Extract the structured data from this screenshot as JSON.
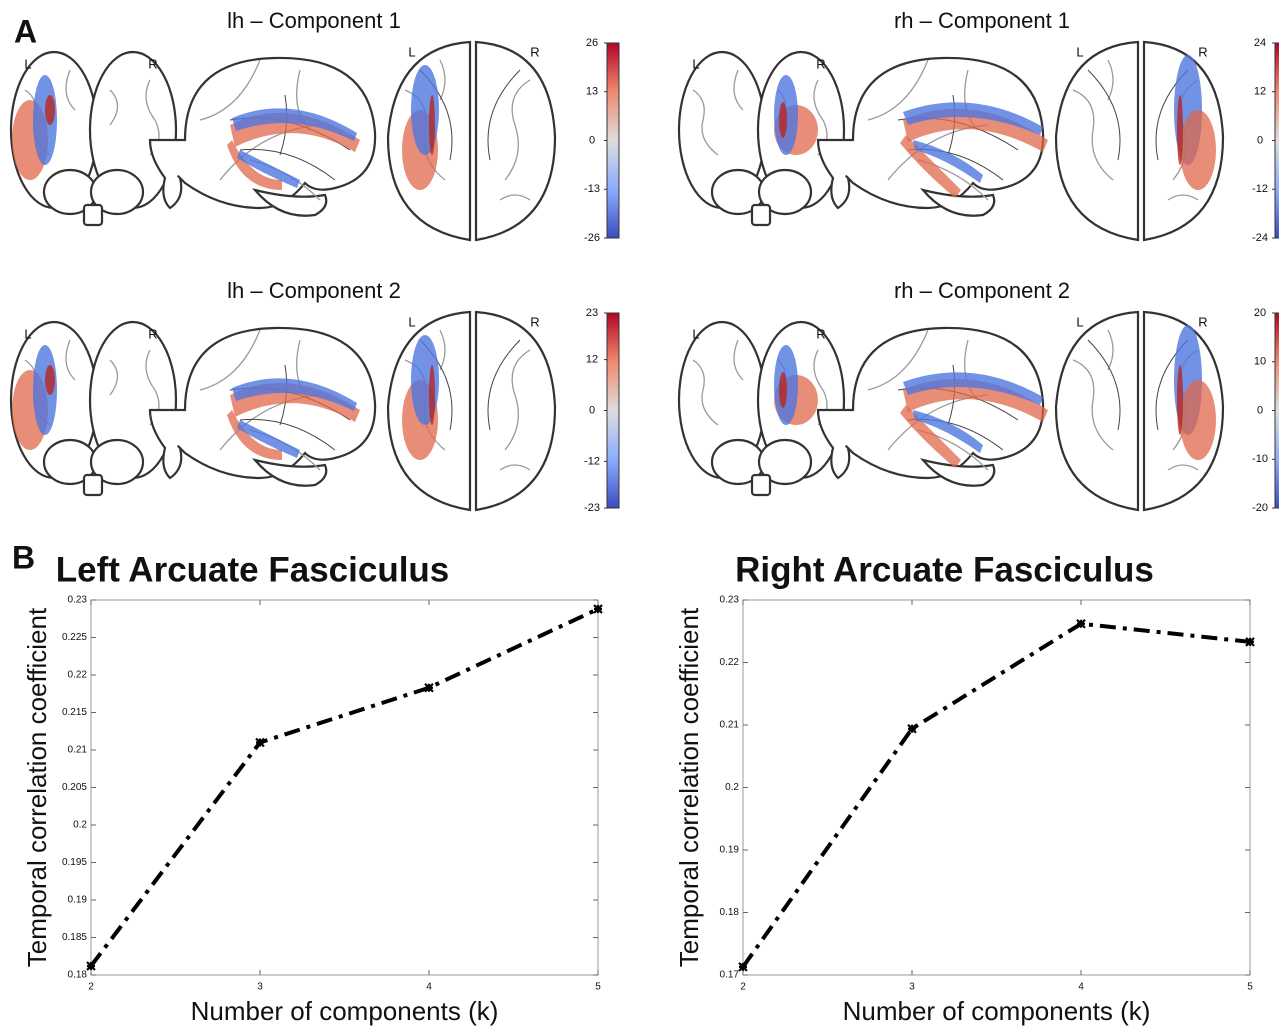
{
  "panel_labels": [
    "A",
    "B"
  ],
  "brain_maps": [
    {
      "title": "lh – Component 1",
      "orientation_labels": [
        "L",
        "R",
        "L",
        "R"
      ],
      "colorbar": {
        "clim": [
          -26,
          26
        ],
        "ticks": [
          26,
          13,
          0,
          -13,
          -26
        ]
      }
    },
    {
      "title": "rh – Component 1",
      "orientation_labels": [
        "L",
        "R",
        "L",
        "R"
      ],
      "colorbar": {
        "clim": [
          -24,
          24
        ],
        "ticks": [
          24,
          12,
          0,
          -12,
          -24
        ]
      }
    },
    {
      "title": "lh – Component 2",
      "orientation_labels": [
        "L",
        "R",
        "L",
        "R"
      ],
      "colorbar": {
        "clim": [
          -23,
          23
        ],
        "ticks": [
          23,
          12,
          0,
          -12,
          -23
        ]
      }
    },
    {
      "title": "rh – Component 2",
      "orientation_labels": [
        "L",
        "R",
        "L",
        "R"
      ],
      "colorbar": {
        "clim": [
          -20,
          20
        ],
        "ticks": [
          20,
          10,
          0,
          -10,
          -20
        ]
      }
    }
  ],
  "chart_data": [
    {
      "type": "line",
      "title": "Left Arcuate Fasciculus",
      "x_label": "Number of components (k)",
      "y_label": "Temporal correlation coefficient",
      "x": [
        2,
        3,
        4,
        5
      ],
      "values": [
        0.1812,
        0.211,
        0.2183,
        0.2288
      ],
      "color": "#000000",
      "line_style": "dashdot",
      "xlim": [
        2,
        5
      ],
      "ylim": [
        0.18,
        0.23
      ],
      "xticks": [
        2,
        3,
        4,
        5
      ],
      "yticks": [
        0.18,
        0.185,
        0.19,
        0.195,
        0.2,
        0.205,
        0.21,
        0.215,
        0.22,
        0.225,
        0.23
      ]
    },
    {
      "type": "line",
      "title": "Right Arcuate Fasciculus",
      "x_label": "Number of components (k)",
      "y_label": "Temporal correlation coefficient",
      "x": [
        2,
        3,
        4,
        5
      ],
      "values": [
        0.1713,
        0.2094,
        0.2262,
        0.2233
      ],
      "color": "#000000",
      "line_style": "dashdot",
      "xlim": [
        2,
        5
      ],
      "ylim": [
        0.17,
        0.23
      ],
      "xticks": [
        2,
        3,
        4,
        5
      ],
      "yticks": [
        0.17,
        0.18,
        0.19,
        0.2,
        0.21,
        0.22,
        0.23
      ]
    }
  ]
}
